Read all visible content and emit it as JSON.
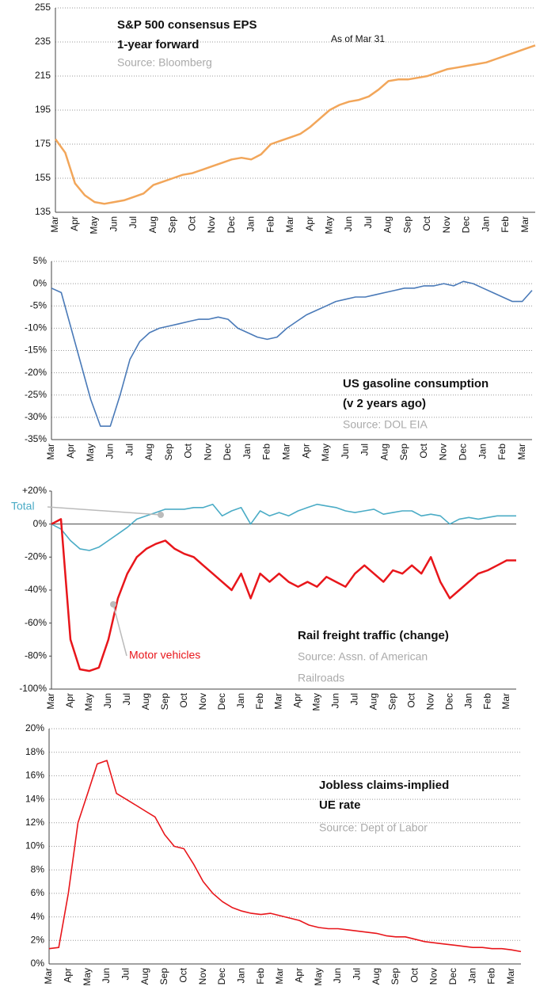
{
  "chart_data": [
    {
      "type": "line",
      "title": [
        "S&P 500 consensus EPS",
        "1-year forward"
      ],
      "source": [
        "Source: Bloomberg"
      ],
      "annotation": "As of Mar 31",
      "categories": [
        "Mar",
        null,
        "Apr",
        null,
        "May",
        null,
        "Jun",
        null,
        "Jul",
        null,
        "Aug",
        null,
        "Sep",
        null,
        "Oct",
        null,
        "Nov",
        null,
        "Dec",
        null,
        "Jan",
        null,
        "Feb",
        null,
        "Mar",
        null,
        "Apr",
        null,
        "May",
        null,
        "Jun",
        null,
        "Jul",
        null,
        "Aug",
        null,
        "Sep",
        null,
        "Oct",
        null,
        "Nov",
        null,
        "Dec",
        null,
        "Jan",
        null,
        "Feb",
        null,
        "Mar",
        null
      ],
      "series": [
        {
          "name": "S&P 500 consensus EPS",
          "color": "#f2a65a",
          "values": [
            178,
            170,
            152,
            145,
            141,
            140,
            141,
            142,
            144,
            146,
            151,
            153,
            155,
            157,
            158,
            160,
            162,
            164,
            166,
            167,
            166,
            169,
            175,
            177,
            179,
            181,
            185,
            190,
            195,
            198,
            200,
            201,
            203,
            207,
            212,
            213,
            213,
            214,
            215,
            217,
            219,
            220,
            221,
            222,
            223,
            225,
            227,
            229,
            231,
            233
          ]
        }
      ],
      "ylim": [
        135,
        255
      ],
      "yticks": [
        135,
        155,
        175,
        195,
        215,
        235,
        255
      ],
      "grid": true
    },
    {
      "type": "line",
      "title": [
        "US gasoline consumption",
        "(v 2 years ago)"
      ],
      "source": [
        "Source: DOL EIA"
      ],
      "categories": [
        "Mar",
        null,
        "Apr",
        null,
        "May",
        null,
        "Jun",
        null,
        "Jul",
        null,
        "Aug",
        null,
        "Sep",
        null,
        "Oct",
        null,
        "Nov",
        null,
        "Dec",
        null,
        "Jan",
        null,
        "Feb",
        null,
        "Mar",
        null,
        "Apr",
        null,
        "May",
        null,
        "Jun",
        null,
        "Jul",
        null,
        "Aug",
        null,
        "Sep",
        null,
        "Oct",
        null,
        "Nov",
        null,
        "Dec",
        null,
        "Jan",
        null,
        "Feb",
        null,
        "Mar",
        null
      ],
      "series": [
        {
          "name": "US gasoline consumption",
          "color": "#4a7ab8",
          "values": [
            -1,
            -2,
            -10,
            -18,
            -26,
            -32,
            -32,
            -25,
            -17,
            -13,
            -11,
            -10,
            -9.5,
            -9,
            -8.5,
            -8,
            -8,
            -7.5,
            -8,
            -10,
            -11,
            -12,
            -12.5,
            -12,
            -10,
            -8.5,
            -7,
            -6,
            -5,
            -4,
            -3.5,
            -3,
            -3,
            -2.5,
            -2,
            -1.5,
            -1,
            -1,
            -0.5,
            -0.5,
            0,
            -0.5,
            0.5,
            0,
            -1,
            -2,
            -3,
            -4,
            -4,
            -1.5
          ]
        }
      ],
      "ylim": [
        -35,
        5
      ],
      "yticks": [
        {
          "value": -35,
          "label": "-35%"
        },
        {
          "value": -30,
          "label": "-30%"
        },
        {
          "value": -25,
          "label": "-25%"
        },
        {
          "value": -20,
          "label": "-20%"
        },
        {
          "value": -15,
          "label": "-15%"
        },
        {
          "value": -10,
          "label": "-10%"
        },
        {
          "value": -5,
          "label": "-5%"
        },
        {
          "value": 0,
          "label": "0%"
        },
        {
          "value": 5,
          "label": "5%"
        }
      ],
      "grid": true
    },
    {
      "type": "line",
      "title": [
        "Rail freight traffic (change)"
      ],
      "source": [
        "Source: Assn. of American",
        "Railroads"
      ],
      "categories": [
        "Mar",
        null,
        "Apr",
        null,
        "May",
        null,
        "Jun",
        null,
        "Jul",
        null,
        "Aug",
        null,
        "Sep",
        null,
        "Oct",
        null,
        "Nov",
        null,
        "Dec",
        null,
        "Jan",
        null,
        "Feb",
        null,
        "Mar",
        null,
        "Apr",
        null,
        "May",
        null,
        "Jun",
        null,
        "Jul",
        null,
        "Aug",
        null,
        "Sep",
        null,
        "Oct",
        null,
        "Nov",
        null,
        "Dec",
        null,
        "Jan",
        null,
        "Feb",
        null,
        "Mar",
        null
      ],
      "series": [
        {
          "name": "Total",
          "color": "#4bacc6",
          "values": [
            0,
            -3,
            -10,
            -15,
            -16,
            -14,
            -10,
            -6,
            -2,
            3,
            5,
            7,
            9,
            9,
            9,
            10,
            10,
            12,
            5,
            8,
            10,
            0,
            8,
            5,
            7,
            5,
            8,
            10,
            12,
            11,
            10,
            8,
            7,
            8,
            9,
            6,
            7,
            8,
            8,
            5,
            6,
            5,
            0,
            3,
            4,
            3,
            4,
            5,
            5,
            5
          ]
        },
        {
          "name": "Motor vehicles",
          "color": "#e8161b",
          "values": [
            0,
            3,
            -70,
            -88,
            -89,
            -87,
            -70,
            -45,
            -30,
            -20,
            -15,
            -12,
            -10,
            -15,
            -18,
            -20,
            -25,
            -30,
            -35,
            -40,
            -30,
            -45,
            -30,
            -35,
            -30,
            -35,
            -38,
            -35,
            -38,
            -32,
            -35,
            -38,
            -30,
            -25,
            -30,
            -35,
            -28,
            -30,
            -25,
            -30,
            -20,
            -35,
            -45,
            -40,
            -35,
            -30,
            -28,
            -25,
            -22,
            -22
          ]
        }
      ],
      "ylim": [
        -100,
        20
      ],
      "yticks": [
        {
          "value": -100,
          "label": "-100%"
        },
        {
          "value": -80,
          "label": "-80%"
        },
        {
          "value": -60,
          "label": "-60%"
        },
        {
          "value": -40,
          "label": "-40%"
        },
        {
          "value": -20,
          "label": "-20%"
        },
        {
          "value": 0,
          "label": "0%"
        },
        {
          "value": 20,
          "label": "+20%"
        }
      ],
      "grid": false
    },
    {
      "type": "line",
      "title": [
        "Jobless claims-implied",
        "UE rate"
      ],
      "source": [
        "Source: Dept of Labor"
      ],
      "categories": [
        "Mar",
        null,
        "Apr",
        null,
        "May",
        null,
        "Jun",
        null,
        "Jul",
        null,
        "Aug",
        null,
        "Sep",
        null,
        "Oct",
        null,
        "Nov",
        null,
        "Dec",
        null,
        "Jan",
        null,
        "Feb",
        null,
        "Mar",
        null,
        "Apr",
        null,
        "May",
        null,
        "Jun",
        null,
        "Jul",
        null,
        "Aug",
        null,
        "Sep",
        null,
        "Oct",
        null,
        "Nov",
        null,
        "Dec",
        null,
        "Jan",
        null,
        "Feb",
        null,
        "Mar",
        null
      ],
      "series": [
        {
          "name": "Jobless claims-implied UE rate",
          "color": "#e8161b",
          "values": [
            1.3,
            1.4,
            6,
            12,
            14.5,
            17,
            17.3,
            14.5,
            14,
            13.5,
            13,
            12.5,
            11,
            10,
            9.8,
            8.5,
            7,
            6,
            5.3,
            4.8,
            4.5,
            4.3,
            4.2,
            4.3,
            4.1,
            3.9,
            3.7,
            3.3,
            3.1,
            3.0,
            3.0,
            2.9,
            2.8,
            2.7,
            2.6,
            2.4,
            2.3,
            2.3,
            2.1,
            1.9,
            1.8,
            1.7,
            1.6,
            1.5,
            1.4,
            1.4,
            1.3,
            1.3,
            1.2,
            1.05
          ]
        }
      ],
      "ylim": [
        0,
        20
      ],
      "yticks": [
        {
          "value": 0,
          "label": "0%"
        },
        {
          "value": 2,
          "label": "2%"
        },
        {
          "value": 4,
          "label": "4%"
        },
        {
          "value": 6,
          "label": "6%"
        },
        {
          "value": 8,
          "label": "8%"
        },
        {
          "value": 10,
          "label": "10%"
        },
        {
          "value": 12,
          "label": "12%"
        },
        {
          "value": 14,
          "label": "14%"
        },
        {
          "value": 16,
          "label": "16%"
        },
        {
          "value": 18,
          "label": "18%"
        },
        {
          "value": 20,
          "label": "20%"
        }
      ],
      "grid": true
    }
  ]
}
